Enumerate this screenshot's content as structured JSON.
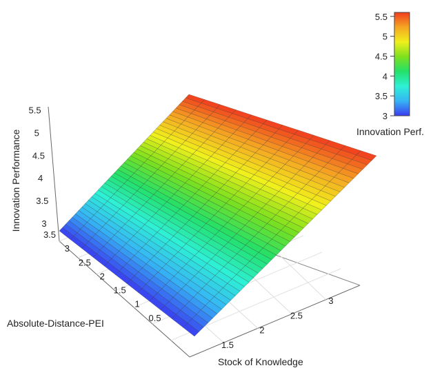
{
  "chart_data": {
    "type": "surface",
    "title": "",
    "axes": {
      "x": {
        "label": "Stock of Knowledge",
        "ticks": [
          1.5,
          2,
          2.5,
          3
        ],
        "range": [
          1,
          3.5
        ]
      },
      "y": {
        "label": "Absolute-Distance-PEI",
        "ticks": [
          0.5,
          1,
          1.5,
          2,
          2.5,
          3,
          3.5
        ],
        "range": [
          0,
          3.5
        ]
      },
      "z": {
        "label": "Innovation Performance",
        "ticks": [
          3,
          3.5,
          4,
          4.5,
          5,
          5.5
        ],
        "range": [
          3,
          5.6
        ]
      }
    },
    "surface_corners": [
      {
        "x": 1.0,
        "y": 3.5,
        "z": 3.0
      },
      {
        "x": 1.0,
        "y": 0.0,
        "z": 3.0
      },
      {
        "x": 3.5,
        "y": 0.0,
        "z": 5.6
      },
      {
        "x": 3.5,
        "y": 3.5,
        "z": 5.6
      }
    ],
    "grid": {
      "x_steps": 40,
      "y_steps": 12
    },
    "colorbar": {
      "title": "Innovation Perf.",
      "ticks": [
        3,
        3.5,
        4,
        4.5,
        5,
        5.5
      ],
      "range": [
        3,
        5.6
      ],
      "colors": [
        "#3a3cf0",
        "#36b4f5",
        "#2ef0d5",
        "#23e06a",
        "#7ee01e",
        "#f0f01c",
        "#f5a623",
        "#f03c1e"
      ]
    }
  }
}
